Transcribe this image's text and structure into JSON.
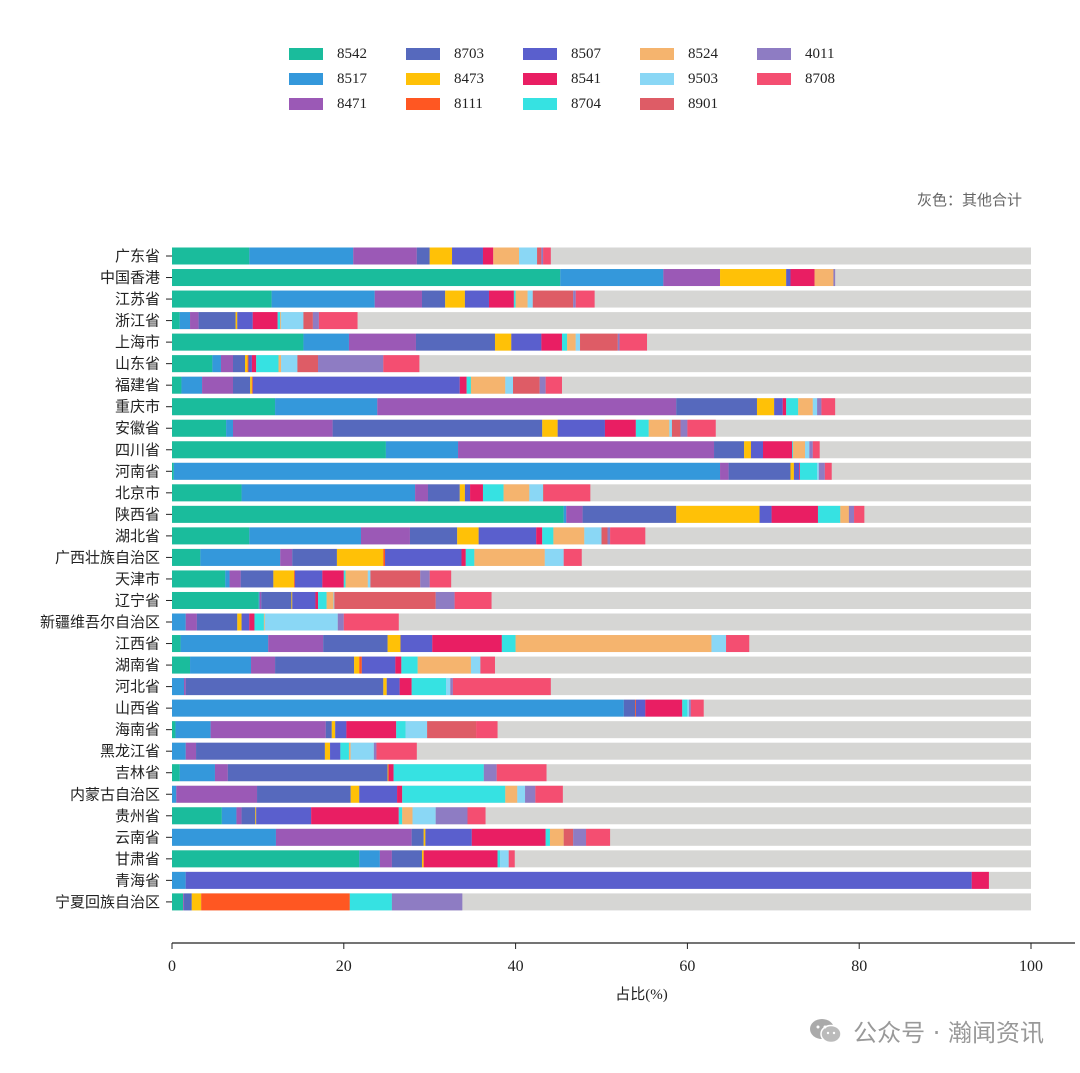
{
  "chart_data": {
    "type": "bar",
    "orientation": "horizontal",
    "stacked": true,
    "xlabel": "占比(%)",
    "ylabel": "",
    "xlim": [
      0,
      100
    ],
    "xticks": [
      0,
      20,
      40,
      60,
      80,
      100
    ],
    "grid": false,
    "legend_position": "top",
    "note": "灰色：其他合计",
    "other_color": "#d6d6d4",
    "categories": [
      "广东省",
      "中国香港",
      "江苏省",
      "浙江省",
      "上海市",
      "山东省",
      "福建省",
      "重庆市",
      "安徽省",
      "四川省",
      "河南省",
      "北京市",
      "陕西省",
      "湖北省",
      "广西壮族自治区",
      "天津市",
      "辽宁省",
      "新疆维吾尔自治区",
      "江西省",
      "湖南省",
      "河北省",
      "山西省",
      "海南省",
      "黑龙江省",
      "吉林省",
      "内蒙古自治区",
      "贵州省",
      "云南省",
      "甘肃省",
      "青海省",
      "宁夏回族自治区"
    ],
    "series": [
      {
        "name": "8542",
        "color": "#1abc9c",
        "values": [
          9.0,
          45.2,
          11.6,
          0.9,
          15.3,
          4.7,
          1.1,
          12.0,
          6.3,
          24.9,
          0.2,
          8.1,
          45.6,
          9.0,
          3.3,
          6.2,
          10.1,
          0,
          1.0,
          2.1,
          0,
          0,
          0.4,
          0,
          0.9,
          0,
          5.8,
          0,
          21.8,
          0,
          1.3
        ]
      },
      {
        "name": "8517",
        "color": "#3498db",
        "values": [
          12.1,
          12.0,
          12.0,
          1.2,
          5.3,
          1.0,
          2.4,
          11.9,
          0.8,
          8.4,
          63.6,
          20.2,
          0.3,
          13.0,
          9.3,
          0.5,
          0.1,
          1.6,
          10.2,
          7.1,
          1.4,
          52.6,
          4.1,
          1.6,
          4.1,
          0.5,
          1.7,
          12.1,
          2.4,
          1.6,
          0
        ]
      },
      {
        "name": "8471",
        "color": "#9b59b6",
        "values": [
          7.4,
          6.6,
          5.5,
          1.0,
          7.8,
          1.4,
          3.6,
          34.8,
          11.6,
          29.8,
          1.0,
          1.5,
          1.9,
          5.7,
          1.4,
          1.3,
          0.2,
          1.3,
          6.4,
          2.8,
          0.2,
          0,
          13.4,
          1.2,
          1.5,
          9.4,
          0.6,
          15.8,
          1.4,
          0,
          0.1
        ]
      },
      {
        "name": "8703",
        "color": "#5669bd",
        "values": [
          1.5,
          0,
          2.7,
          4.3,
          9.2,
          1.4,
          2.0,
          9.4,
          24.4,
          3.5,
          7.2,
          3.7,
          10.9,
          5.5,
          5.2,
          3.8,
          3.5,
          4.7,
          7.5,
          9.2,
          23.0,
          1.3,
          0.7,
          15.0,
          18.6,
          10.9,
          1.6,
          1.4,
          3.5,
          0,
          0.9
        ]
      },
      {
        "name": "8473",
        "color": "#ffc107",
        "values": [
          2.6,
          7.7,
          2.3,
          0.2,
          1.9,
          0.3,
          0.2,
          2.0,
          1.8,
          0.8,
          0.4,
          0.6,
          9.7,
          2.5,
          5.4,
          2.4,
          0.1,
          0.5,
          1.5,
          0.6,
          0.4,
          0,
          0.4,
          0.6,
          0.1,
          1.0,
          0.1,
          0.2,
          0.2,
          0,
          1.1
        ]
      },
      {
        "name": "8111",
        "color": "#ff5722",
        "values": [
          0,
          0,
          0,
          0,
          0,
          0.1,
          0.1,
          0,
          0,
          0,
          0,
          0,
          0,
          0,
          0.2,
          0.1,
          0,
          0,
          0,
          0.3,
          0,
          0.1,
          0,
          0,
          0,
          0,
          0,
          0,
          0,
          0,
          17.3
        ]
      },
      {
        "name": "8507",
        "color": "#5a5fcd",
        "values": [
          3.6,
          0.5,
          2.8,
          1.8,
          3.5,
          0.4,
          24.1,
          1.0,
          5.5,
          1.4,
          0.6,
          0.6,
          1.4,
          6.7,
          8.9,
          3.2,
          2.7,
          0.9,
          3.7,
          3.9,
          1.5,
          1.1,
          1.3,
          1.2,
          0,
          4.4,
          6.4,
          5.4,
          0,
          91.5,
          0
        ]
      },
      {
        "name": "8541",
        "color": "#e91e63",
        "values": [
          1.2,
          2.8,
          2.9,
          2.9,
          2.4,
          0.5,
          0.8,
          0.4,
          3.6,
          3.4,
          0.1,
          1.5,
          5.4,
          0.7,
          0.5,
          2.5,
          0.3,
          0.6,
          8.1,
          0.7,
          1.4,
          4.3,
          5.8,
          0,
          0.6,
          0.6,
          10.2,
          8.6,
          8.6,
          2.0,
          0
        ]
      },
      {
        "name": "8704",
        "color": "#36e2e2",
        "values": [
          0,
          0,
          0.2,
          0.3,
          0.6,
          2.6,
          0.5,
          1.4,
          1.5,
          0.1,
          2.0,
          2.4,
          2.6,
          1.3,
          1.0,
          0.2,
          1.0,
          1.1,
          1.6,
          1.9,
          4.0,
          0.6,
          1.1,
          1.0,
          10.5,
          12.0,
          0.4,
          0.5,
          0.3,
          0,
          4.9
        ]
      },
      {
        "name": "8524",
        "color": "#f5b46e",
        "values": [
          3.0,
          2.2,
          1.4,
          0.1,
          1.0,
          0.3,
          4.0,
          1.7,
          2.4,
          1.4,
          0,
          3.0,
          1.0,
          3.6,
          8.2,
          2.6,
          0.8,
          0.1,
          22.8,
          6.2,
          0,
          0,
          0,
          0.2,
          0,
          1.4,
          1.2,
          1.6,
          0,
          0,
          0
        ]
      },
      {
        "name": "9503",
        "color": "#8ad7f5",
        "values": [
          2.1,
          0,
          0.6,
          2.6,
          0.5,
          1.9,
          0.9,
          0.5,
          0.3,
          0.5,
          0.2,
          1.6,
          0,
          2.0,
          2.2,
          0.3,
          0.1,
          8.5,
          1.7,
          1.1,
          0.5,
          0.2,
          2.5,
          2.7,
          0,
          0.9,
          2.7,
          0,
          1.0,
          0,
          0
        ]
      },
      {
        "name": "8901",
        "color": "#de5c66",
        "values": [
          0.5,
          0,
          4.7,
          1.1,
          4.4,
          2.4,
          3.1,
          0,
          1.0,
          0,
          0,
          0.1,
          0,
          0.7,
          0,
          5.8,
          11.8,
          0,
          0,
          0,
          0,
          0,
          5.7,
          0,
          0,
          0,
          0,
          1.1,
          0,
          0,
          0
        ]
      },
      {
        "name": "4011",
        "color": "#8e7cc3",
        "values": [
          0.2,
          0.2,
          0.3,
          0.7,
          0.2,
          7.6,
          0.7,
          0.5,
          0.8,
          0.4,
          0.7,
          0,
          0.6,
          0.3,
          0,
          1.1,
          2.2,
          0.7,
          0,
          0,
          0.3,
          0.2,
          0,
          0.3,
          1.5,
          1.2,
          3.7,
          1.5,
          0,
          0,
          8.2
        ]
      },
      {
        "name": "8708",
        "color": "#f44e71",
        "values": [
          0.9,
          0,
          2.2,
          4.5,
          3.2,
          4.2,
          1.9,
          1.6,
          3.3,
          0.8,
          0.8,
          5.4,
          1.2,
          4.1,
          2.1,
          2.5,
          4.3,
          6.4,
          2.7,
          1.7,
          11.4,
          1.5,
          2.5,
          4.7,
          5.8,
          3.2,
          2.1,
          2.8,
          0.7,
          0,
          0
        ]
      }
    ]
  },
  "watermark": "公众号 · 瀚闻资讯"
}
